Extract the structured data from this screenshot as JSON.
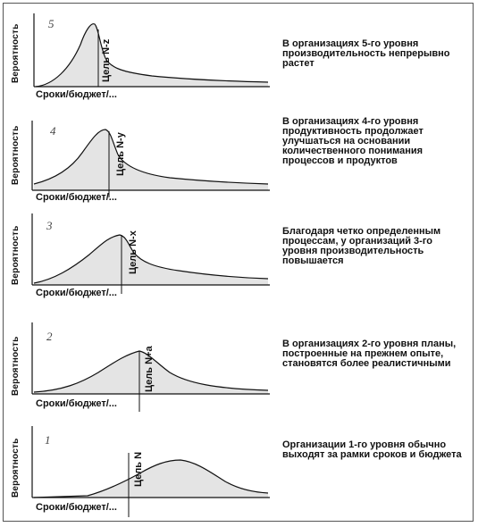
{
  "panels": [
    {
      "level": "5",
      "ylabel": "Вероятность",
      "xlabel": "Сроки/бюджет/...",
      "target": "Цель N-z",
      "description": "В организациях 5-го уровня производительность непрерывно растет"
    },
    {
      "level": "4",
      "ylabel": "Вероятность",
      "xlabel": "Сроки/бюджет/...",
      "target": "Цель N-y",
      "description": "В организациях 4-го уровня продуктивность продолжает улучшаться на основании количественного понимания процессов и продуктов"
    },
    {
      "level": "3",
      "ylabel": "Вероятность",
      "xlabel": "Сроки/бюджет/...",
      "target": "Цель N-x",
      "description": "Благодаря четко определенным процессам, у организаций 3-го уровня производительность повышается"
    },
    {
      "level": "2",
      "ylabel": "Вероятность",
      "xlabel": "Сроки/бюджет/...",
      "target": "Цель N+a",
      "description": "В организациях 2-го уровня планы, построенные на прежнем опыте, становятся более реалистичными"
    },
    {
      "level": "1",
      "ylabel": "Вероятность",
      "xlabel": "Сроки/бюджет/...",
      "target": "Цель N",
      "description": "Организации 1-го уровня обычно выходят за рамки сроков и бюджета"
    }
  ]
}
